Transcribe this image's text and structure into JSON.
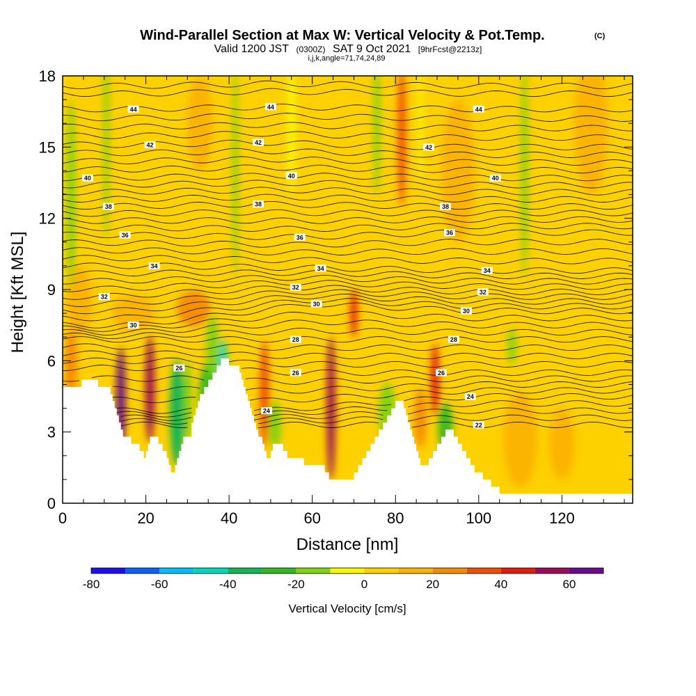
{
  "header": {
    "title": "Wind-Parallel Section at Max W: Vertical Velocity & Pot.Temp.",
    "title_mark": "(C)",
    "sub_a": "Valid 1200 JST",
    "sub_b": "(0300Z)",
    "sub_c": "SAT 9 Oct 2021",
    "sub_d": "[9hrFcst@2213z]",
    "ijk": "i,j,k,angle=71,74,24,89"
  },
  "chart_data": {
    "type": "heatmap",
    "title": "Wind-Parallel Section at Max W: Vertical Velocity & Pot.Temp.",
    "xlabel": "Distance [nm]",
    "ylabel": "Height [Kft MSL]",
    "xlim": [
      0,
      137
    ],
    "ylim": [
      0,
      18
    ],
    "x_ticks": [
      0,
      20,
      40,
      60,
      80,
      100,
      120
    ],
    "y_ticks": [
      0,
      3,
      6,
      9,
      12,
      15,
      18
    ],
    "grid": false,
    "terrain": {
      "x": [
        0,
        4,
        4.5,
        8,
        8.5,
        11,
        11.5,
        12,
        12.5,
        13,
        13.5,
        14,
        14.5,
        16,
        16.5,
        18,
        18.5,
        19,
        19.5,
        20,
        20.5,
        21,
        22,
        23,
        24,
        25,
        25.5,
        26,
        26.5,
        27,
        27.5,
        28,
        28.5,
        29,
        31,
        31.5,
        32,
        32.5,
        33,
        34,
        35,
        36,
        37,
        38,
        39,
        40,
        42,
        42.5,
        43,
        43.5,
        44,
        44.5,
        45,
        45.5,
        46,
        46.5,
        47,
        48,
        48.5,
        49,
        49.5,
        50,
        50.5,
        52,
        53,
        54,
        56,
        57,
        58,
        60,
        62,
        63,
        64,
        65,
        66,
        67,
        68,
        69,
        70,
        71,
        72,
        73,
        74,
        75,
        76,
        77,
        78,
        79,
        80,
        81,
        82,
        82.5,
        83,
        83.5,
        84,
        84.5,
        85,
        85.5,
        86,
        86.5,
        87,
        88,
        89,
        90,
        91,
        92,
        93,
        94,
        95,
        96,
        97,
        98,
        99,
        100,
        101,
        102,
        103,
        104,
        105,
        106,
        137
      ],
      "y": [
        4.9,
        4.9,
        5.2,
        5.2,
        4.9,
        4.9,
        4.6,
        4.3,
        4.0,
        3.7,
        3.4,
        3.1,
        2.8,
        2.8,
        2.5,
        2.5,
        2.2,
        2.2,
        1.9,
        2.2,
        2.5,
        2.8,
        2.8,
        2.5,
        2.2,
        1.9,
        1.6,
        1.3,
        1.3,
        1.6,
        1.9,
        2.2,
        2.5,
        2.8,
        3.4,
        3.7,
        4.0,
        4.3,
        4.6,
        4.9,
        5.2,
        5.5,
        5.8,
        6.1,
        6.1,
        5.8,
        5.8,
        5.5,
        5.2,
        4.9,
        4.6,
        4.3,
        4.0,
        3.7,
        3.4,
        3.1,
        2.8,
        2.5,
        2.2,
        1.9,
        1.9,
        2.2,
        2.5,
        2.5,
        2.2,
        1.9,
        1.9,
        1.9,
        1.6,
        1.6,
        1.6,
        1.3,
        1.0,
        1.0,
        1.0,
        1.0,
        1.0,
        1.0,
        1.3,
        1.6,
        1.9,
        2.2,
        2.5,
        2.8,
        3.1,
        3.4,
        3.7,
        4.0,
        4.3,
        4.3,
        4.0,
        3.7,
        3.4,
        3.1,
        2.8,
        2.5,
        2.2,
        1.9,
        1.6,
        1.6,
        1.6,
        1.9,
        2.2,
        2.5,
        2.8,
        3.1,
        3.1,
        2.8,
        2.5,
        2.2,
        1.9,
        1.6,
        1.3,
        1.3,
        1.0,
        1.0,
        0.7,
        0.7,
        0.4,
        0.4,
        0.4,
        0.4,
        0.4
      ]
    },
    "contours": {
      "variable": "potential temperature",
      "levels": [
        22,
        24,
        26,
        28,
        30,
        32,
        34,
        36,
        38,
        40,
        42,
        44
      ],
      "labels": [
        {
          "text": "44",
          "x": 17,
          "y": 16.6
        },
        {
          "text": "44",
          "x": 50,
          "y": 16.7
        },
        {
          "text": "44",
          "x": 100,
          "y": 16.6
        },
        {
          "text": "42",
          "x": 21,
          "y": 15.1
        },
        {
          "text": "42",
          "x": 47,
          "y": 15.2
        },
        {
          "text": "42",
          "x": 88,
          "y": 15.0
        },
        {
          "text": "40",
          "x": 6,
          "y": 13.7
        },
        {
          "text": "40",
          "x": 55,
          "y": 13.8
        },
        {
          "text": "40",
          "x": 104,
          "y": 13.7
        },
        {
          "text": "38",
          "x": 11,
          "y": 12.5
        },
        {
          "text": "38",
          "x": 47,
          "y": 12.6
        },
        {
          "text": "38",
          "x": 92,
          "y": 12.5
        },
        {
          "text": "36",
          "x": 15,
          "y": 11.3
        },
        {
          "text": "36",
          "x": 57,
          "y": 11.2
        },
        {
          "text": "36",
          "x": 93,
          "y": 11.4
        },
        {
          "text": "34",
          "x": 22,
          "y": 10.0
        },
        {
          "text": "34",
          "x": 62,
          "y": 9.9
        },
        {
          "text": "34",
          "x": 102,
          "y": 9.8
        },
        {
          "text": "32",
          "x": 10,
          "y": 8.7
        },
        {
          "text": "32",
          "x": 56,
          "y": 9.1
        },
        {
          "text": "32",
          "x": 101,
          "y": 8.9
        },
        {
          "text": "30",
          "x": 17,
          "y": 7.5
        },
        {
          "text": "30",
          "x": 61,
          "y": 8.4
        },
        {
          "text": "30",
          "x": 97,
          "y": 8.1
        },
        {
          "text": "28",
          "x": 56,
          "y": 6.9
        },
        {
          "text": "28",
          "x": 94,
          "y": 6.9
        },
        {
          "text": "26",
          "x": 28,
          "y": 5.7
        },
        {
          "text": "26",
          "x": 56,
          "y": 5.5
        },
        {
          "text": "26",
          "x": 91,
          "y": 5.5
        },
        {
          "text": "24",
          "x": 49,
          "y": 3.9
        },
        {
          "text": "24",
          "x": 98,
          "y": 4.5
        },
        {
          "text": "22",
          "x": 100,
          "y": 3.3
        }
      ]
    },
    "colorbar": {
      "label": "Vertical Velocity [cm/s]",
      "bounds": [
        -80,
        70
      ],
      "step": 10,
      "tick_labels": [
        "-80",
        "-60",
        "-40",
        "-20",
        "0",
        "20",
        "40",
        "60"
      ],
      "colors": [
        "#1e0ff0",
        "#0a5ff5",
        "#00bef8",
        "#00d9b9",
        "#14b554",
        "#33b823",
        "#7fd20f",
        "#f7f700",
        "#fdd000",
        "#fbb200",
        "#f58b00",
        "#ee4f00",
        "#e41a0a",
        "#9a0a57",
        "#6a0a8c"
      ]
    },
    "field": {
      "background": 5,
      "features": [
        {
          "x": 14,
          "y": 4.3,
          "w": 2.2,
          "h": 4.5,
          "v": 65
        },
        {
          "x": 21,
          "y": 4.8,
          "w": 2.2,
          "h": 4.5,
          "v": 50
        },
        {
          "x": 27.5,
          "y": 3.8,
          "w": 3.5,
          "h": 4.5,
          "v": -35
        },
        {
          "x": 30,
          "y": 4.3,
          "w": 2.0,
          "h": 3.5,
          "v": -20
        },
        {
          "x": 35.5,
          "y": 4.5,
          "w": 5.5,
          "h": 3.0,
          "v": -25
        },
        {
          "x": 38.5,
          "y": 5.9,
          "w": 2.0,
          "h": 2.0,
          "v": -50
        },
        {
          "x": 36,
          "y": 6.6,
          "w": 3.0,
          "h": 2.6,
          "v": -20
        },
        {
          "x": 48.5,
          "y": 4.6,
          "w": 2.2,
          "h": 4.5,
          "v": 35
        },
        {
          "x": 51,
          "y": 3.3,
          "w": 3.0,
          "h": 2.0,
          "v": -20
        },
        {
          "x": 64.5,
          "y": 4.0,
          "w": 2.0,
          "h": 6.0,
          "v": 55
        },
        {
          "x": 70,
          "y": 8.0,
          "w": 1.6,
          "h": 2.0,
          "v": 45
        },
        {
          "x": 78,
          "y": 3.8,
          "w": 4.0,
          "h": 2.5,
          "v": -20
        },
        {
          "x": 86,
          "y": 3.6,
          "w": 3.0,
          "h": 2.5,
          "v": 25
        },
        {
          "x": 89.5,
          "y": 5.2,
          "w": 2.0,
          "h": 3.0,
          "v": 40
        },
        {
          "x": 92,
          "y": 3.2,
          "w": 3.5,
          "h": 2.0,
          "v": -22
        },
        {
          "x": 31.5,
          "y": 8.2,
          "w": 8.0,
          "h": 1.5,
          "v": 25
        },
        {
          "x": 17,
          "y": 8.0,
          "w": 10.0,
          "h": 1.5,
          "v": 15
        },
        {
          "x": 108,
          "y": 6.6,
          "w": 2.0,
          "h": 1.5,
          "v": -15
        },
        {
          "x": 110,
          "y": 2.7,
          "w": 8.0,
          "h": 4.0,
          "v": 15
        },
        {
          "x": 120,
          "y": 2.5,
          "w": 6.0,
          "h": 3.0,
          "v": 12
        },
        {
          "x": 4,
          "y": 8.5,
          "w": 6.0,
          "h": 3.0,
          "v": 15
        },
        {
          "x": 2,
          "y": 5.8,
          "w": 3.0,
          "h": 3.0,
          "v": 20
        },
        {
          "x": 10.5,
          "y": 15.5,
          "w": 1.2,
          "h": 9.0,
          "v": -15
        },
        {
          "x": 41.5,
          "y": 14.0,
          "w": 1.2,
          "h": 9.0,
          "v": -15
        },
        {
          "x": 55,
          "y": 16.0,
          "w": 2.0,
          "h": 6.0,
          "v": -10
        },
        {
          "x": 75.5,
          "y": 16.0,
          "w": 1.5,
          "h": 6.0,
          "v": -15
        },
        {
          "x": 81.5,
          "y": 15.5,
          "w": 2.0,
          "h": 6.0,
          "v": 30
        },
        {
          "x": 86,
          "y": 16.0,
          "w": 1.2,
          "h": 5.0,
          "v": -10
        },
        {
          "x": 111,
          "y": 14.0,
          "w": 1.5,
          "h": 9.0,
          "v": -12
        },
        {
          "x": 127,
          "y": 16.0,
          "w": 8.0,
          "h": 6.0,
          "v": 12
        },
        {
          "x": 2,
          "y": 13.0,
          "w": 2.0,
          "h": 8.0,
          "v": -12
        },
        {
          "x": 33,
          "y": 16.0,
          "w": 6.0,
          "h": 4.0,
          "v": 12
        },
        {
          "x": 95,
          "y": 14.0,
          "w": 8.0,
          "h": 6.0,
          "v": 12
        }
      ]
    }
  }
}
